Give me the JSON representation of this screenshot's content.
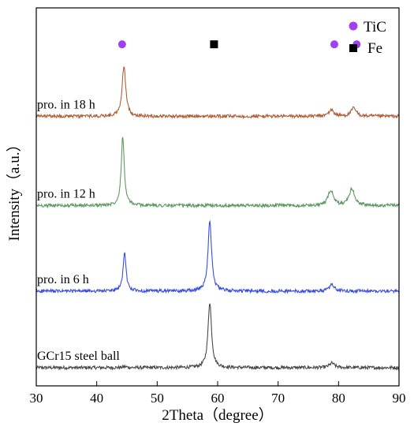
{
  "chart_data": {
    "type": "line",
    "xlabel": "2Theta（degree）",
    "ylabel": "Intensity（a.u.）",
    "xlim": [
      30,
      90
    ],
    "xticks": [
      30,
      40,
      50,
      60,
      70,
      80,
      90
    ],
    "yticks": "none",
    "grid": false,
    "legend": {
      "placement": "top-right",
      "entries": [
        {
          "label": "TiC",
          "marker": "circle",
          "color": "#a040f0"
        },
        {
          "label": "Fe",
          "marker": "square",
          "color": "#000000"
        }
      ]
    },
    "series": [
      {
        "name": "GCr15 steel ball",
        "color": "#4a4a4a",
        "baseline": 0.2,
        "peaks": [
          {
            "x": 44.7,
            "height": 0.01,
            "width": 0.4
          },
          {
            "x": 58.7,
            "height": 0.72,
            "width": 0.35
          },
          {
            "x": 78.9,
            "height": 0.05,
            "width": 0.5
          }
        ],
        "noise": 0.018
      },
      {
        "name": "pro. in 6 h",
        "color": "#3a4fe0",
        "baseline": 1.04,
        "peaks": [
          {
            "x": 44.6,
            "height": 0.42,
            "width": 0.3
          },
          {
            "x": 58.7,
            "height": 0.78,
            "width": 0.35
          },
          {
            "x": 78.9,
            "height": 0.07,
            "width": 0.5
          }
        ],
        "noise": 0.018
      },
      {
        "name": "pro. in 12 h",
        "color": "#5f9a64",
        "baseline": 1.98,
        "peaks": [
          {
            "x": 44.3,
            "height": 0.76,
            "width": 0.3
          },
          {
            "x": 78.7,
            "height": 0.17,
            "width": 0.5
          },
          {
            "x": 82.2,
            "height": 0.19,
            "width": 0.5
          }
        ],
        "noise": 0.018
      },
      {
        "name": "pro. in 18 h",
        "color": "#b0603a",
        "baseline": 2.96,
        "peaks": [
          {
            "x": 44.5,
            "height": 0.56,
            "width": 0.35
          },
          {
            "x": 78.8,
            "height": 0.07,
            "width": 0.5
          },
          {
            "x": 82.5,
            "height": 0.09,
            "width": 0.5
          }
        ],
        "noise": 0.018
      }
    ],
    "phase_markers": [
      {
        "phase": "TiC",
        "x": 44.2,
        "y": 3.75,
        "shape": "circle",
        "color": "#a040f0"
      },
      {
        "phase": "Fe",
        "x": 59.4,
        "y": 3.75,
        "shape": "square",
        "color": "#000000"
      },
      {
        "phase": "TiC",
        "x": 79.3,
        "y": 3.75,
        "shape": "circle",
        "color": "#a040f0"
      },
      {
        "phase": "TiC",
        "x": 83.0,
        "y": 3.75,
        "shape": "circle",
        "color": "#a040f0"
      }
    ],
    "y_display_range": [
      0,
      4.15
    ]
  }
}
